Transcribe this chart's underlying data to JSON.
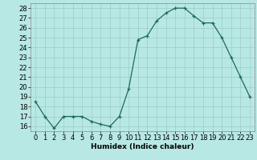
{
  "x": [
    0,
    1,
    2,
    3,
    4,
    5,
    6,
    7,
    8,
    9,
    10,
    11,
    12,
    13,
    14,
    15,
    16,
    17,
    18,
    19,
    20,
    21,
    22,
    23
  ],
  "y": [
    18.5,
    17.0,
    15.8,
    17.0,
    17.0,
    17.0,
    16.5,
    16.2,
    16.0,
    17.0,
    19.8,
    24.8,
    25.2,
    26.7,
    27.5,
    28.0,
    28.0,
    27.2,
    26.5,
    26.5,
    25.0,
    23.0,
    21.0,
    19.0
  ],
  "xlabel": "Humidex (Indice chaleur)",
  "xlim": [
    -0.5,
    23.5
  ],
  "ylim": [
    15.5,
    28.5
  ],
  "yticks": [
    16,
    17,
    18,
    19,
    20,
    21,
    22,
    23,
    24,
    25,
    26,
    27,
    28
  ],
  "xticks": [
    0,
    1,
    2,
    3,
    4,
    5,
    6,
    7,
    8,
    9,
    10,
    11,
    12,
    13,
    14,
    15,
    16,
    17,
    18,
    19,
    20,
    21,
    22,
    23
  ],
  "line_color": "#1a6b5a",
  "marker": "+",
  "bg_color": "#b8e8e4",
  "grid_color": "#9eccc8",
  "label_fontsize": 6.5,
  "tick_fontsize": 6.0
}
